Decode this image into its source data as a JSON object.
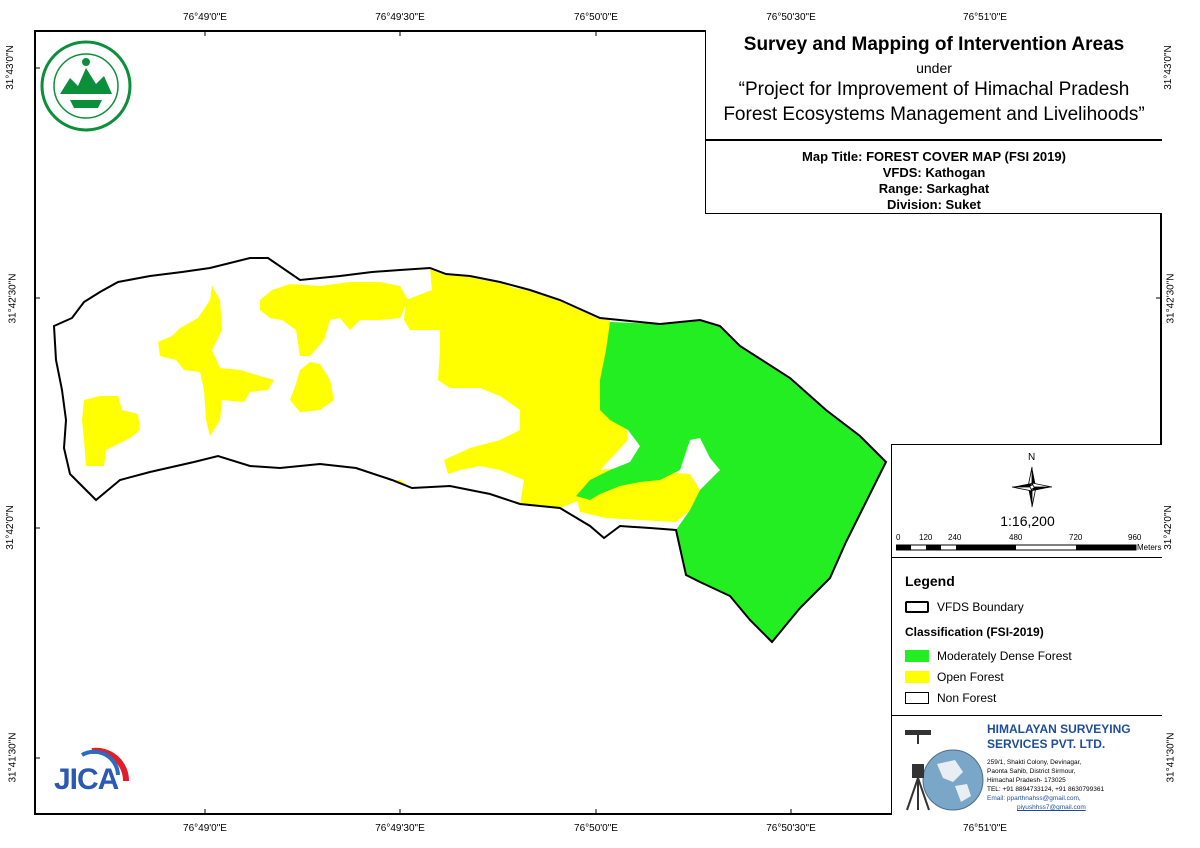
{
  "header": {
    "title": "Survey and Mapping of Intervention Areas",
    "under": "under",
    "project_line1": "“Project for Improvement of Himachal Pradesh",
    "project_line2": "Forest Ecosystems Management and Livelihoods”"
  },
  "map_info": {
    "map_title": "Map Title: FOREST COVER MAP (FSI 2019)",
    "vfds": "VFDS: Kathogan",
    "range": "Range: Sarkaghat",
    "division": "Division: Suket"
  },
  "graticule": {
    "longitudes": [
      "76°49'0\"E",
      "76°49'30\"E",
      "76°50'0\"E",
      "76°50'30\"E",
      "76°51'0\"E"
    ],
    "latitudes": [
      "31°43'0\"N",
      "31°42'30\"N",
      "31°42'0\"N",
      "31°41'30\"N"
    ]
  },
  "north_arrow": {
    "label": "N"
  },
  "scale": {
    "ratio": "1:16,200",
    "ticks": [
      "0",
      "120",
      "240",
      "480",
      "720",
      "960"
    ],
    "unit": "Meters"
  },
  "legend": {
    "title": "Legend",
    "boundary_label": "VFDS Boundary",
    "classification_title": "Classification (FSI-2019)",
    "items": [
      {
        "label": "Moderately Dense Forest",
        "color": "#22ee22"
      },
      {
        "label": "Open Forest",
        "color": "#ffff00"
      },
      {
        "label": "Non Forest",
        "color": "#ffffff"
      }
    ]
  },
  "company": {
    "name_line1": "HIMALAYAN SURVEYING",
    "name_line2": "SERVICES PVT. LTD.",
    "addr1": "259/1, Shakti Colony, Devinagar,",
    "addr2": "Paonta Sahib, District Sirmour,",
    "addr3": "Himachal Pradesh- 173025",
    "tel": "TEL: +91 8894733124, +91 8630799361",
    "email1": "Email: pparthnahss@gmail.com,",
    "email2": "piyushhss7@gmail.com",
    "color": "#1f4e99"
  },
  "logos": {
    "forest_dept_text": "वन विभाग हिमाचल प्रदेश",
    "jica_text": "JICA"
  }
}
